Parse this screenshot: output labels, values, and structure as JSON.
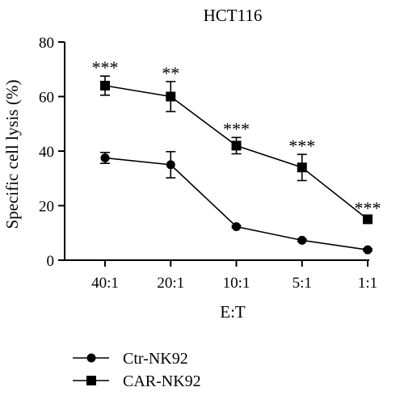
{
  "chart_data": {
    "type": "line",
    "title": "HCT116",
    "xlabel": "E:T",
    "ylabel": "Specific cell lysis (%)",
    "categories": [
      "40:1",
      "20:1",
      "10:1",
      "5:1",
      "1:1"
    ],
    "ylim": [
      0,
      80
    ],
    "yticks": [
      0,
      20,
      40,
      60,
      80
    ],
    "grid": false,
    "legend_position": "bottom-left",
    "series": [
      {
        "name": "Ctr-NK92",
        "marker": "circle",
        "color": "#000000",
        "values": [
          37.5,
          35,
          12.3,
          7.3,
          3.8
        ],
        "errors": [
          2,
          4.8,
          0.4,
          0.4,
          0.4
        ]
      },
      {
        "name": "CAR-NK92",
        "marker": "square",
        "color": "#000000",
        "values": [
          64,
          60,
          42,
          34,
          15
        ],
        "errors": [
          3.5,
          5.5,
          3,
          4.8,
          1
        ]
      }
    ],
    "annotations": [
      "***",
      "**",
      "***",
      "***",
      "***"
    ]
  }
}
